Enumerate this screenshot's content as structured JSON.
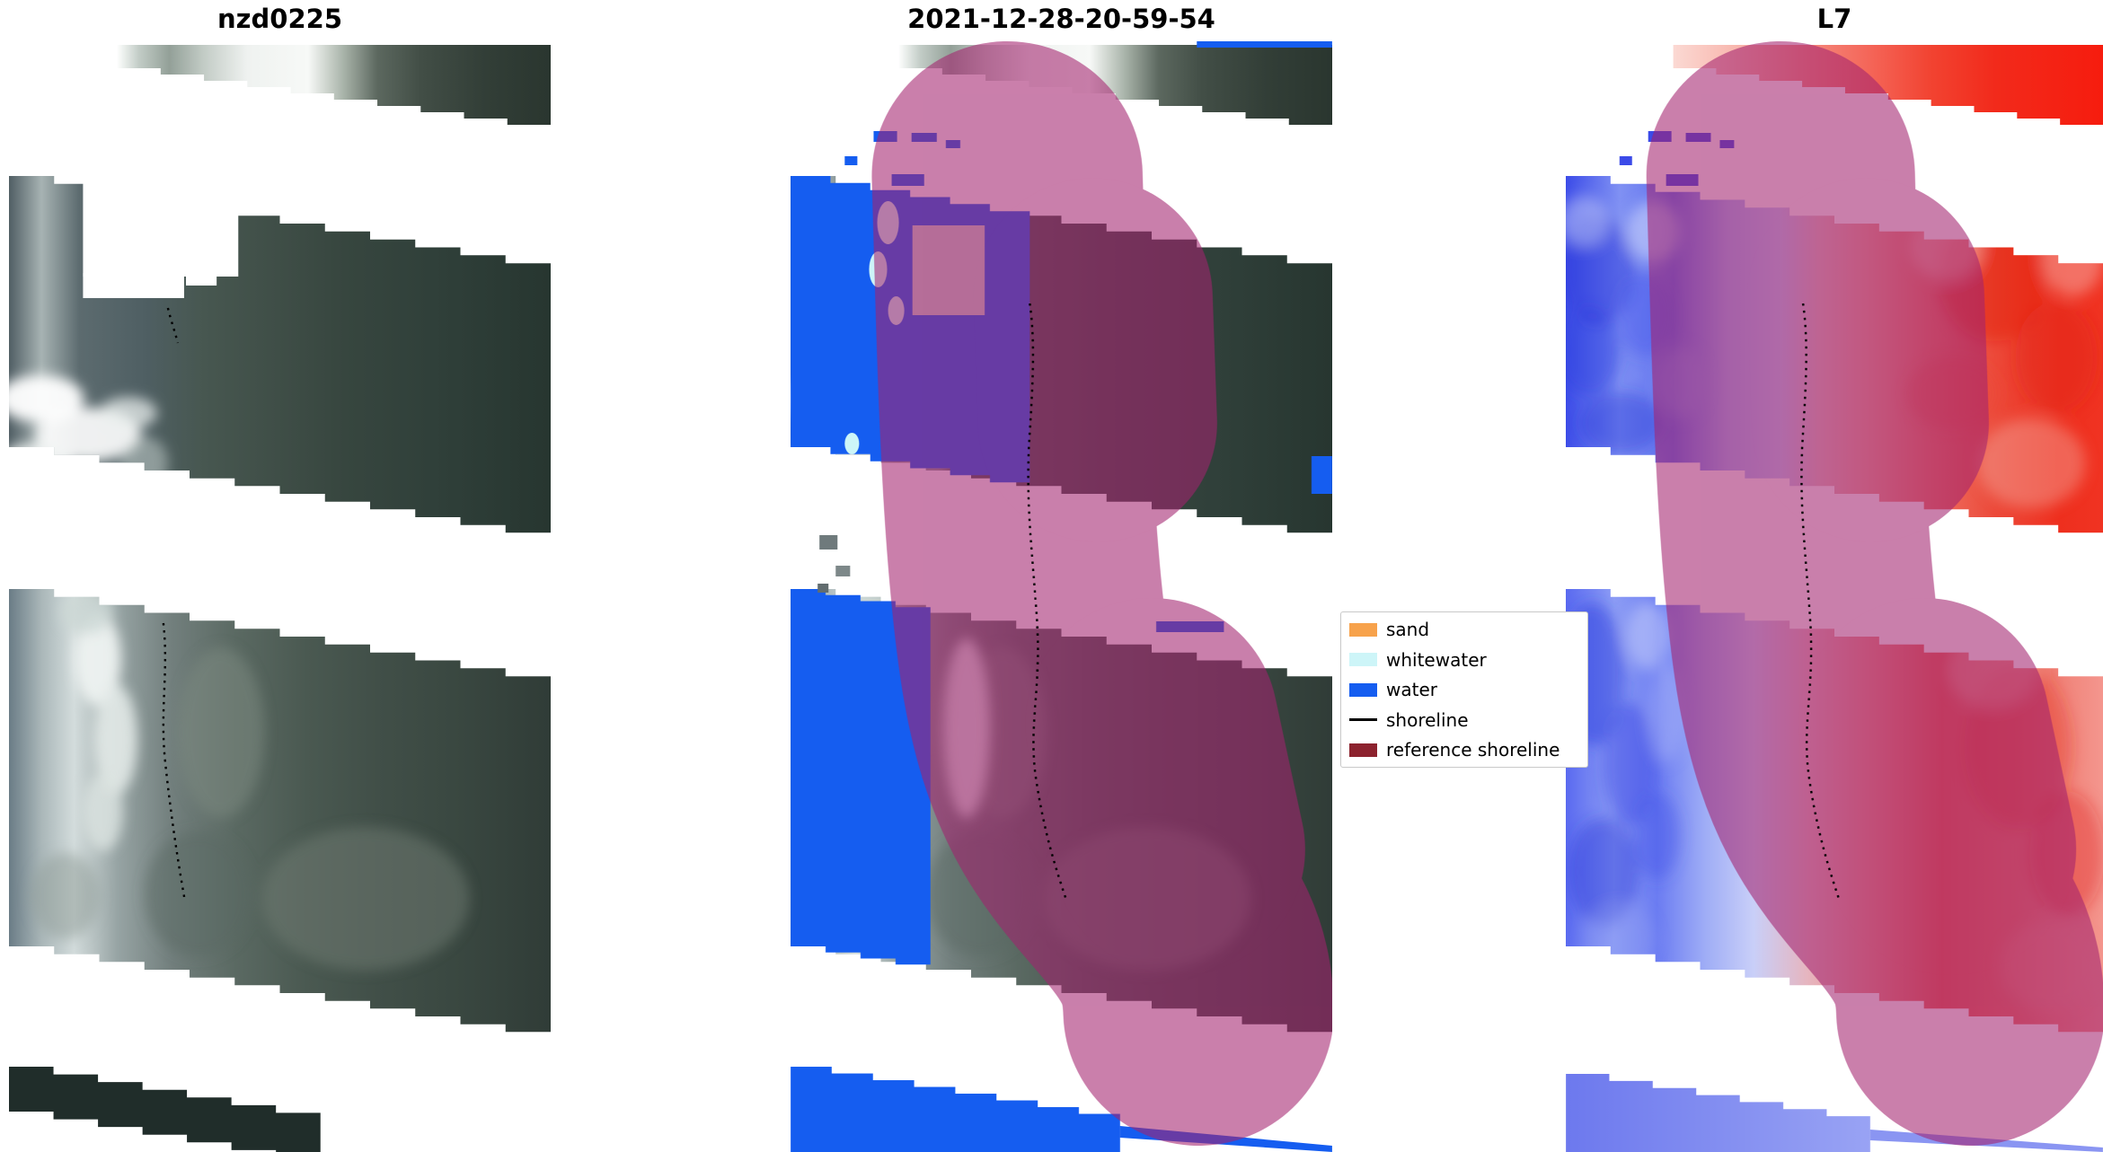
{
  "figure": {
    "background": "#ffffff",
    "panels": [
      {
        "id": "rgb",
        "title": "nzd0225"
      },
      {
        "id": "classified",
        "title": "2021-12-28-20-59-54"
      },
      {
        "id": "l7",
        "title": "L7"
      }
    ]
  },
  "legend": {
    "items": [
      {
        "label": "sand",
        "swatch": "patch",
        "color": "#f7a24b"
      },
      {
        "label": "whitewater",
        "swatch": "patch",
        "color": "#cdf5f8"
      },
      {
        "label": "water",
        "swatch": "patch",
        "color": "#155df0"
      },
      {
        "label": "shoreline",
        "swatch": "line",
        "color": "#000000"
      },
      {
        "label": "reference shoreline",
        "swatch": "patch",
        "color": "#8c222e"
      }
    ]
  },
  "overlay": {
    "reference_buffer_color": "#a3236e",
    "shoreline_style": "black dotted line"
  },
  "chart_data": {
    "type": "image",
    "panels": [
      {
        "title": "nzd0225",
        "description": "True-colour satellite image of a coastal scene with cloud cover and diagonal Landsat-7 SLC-off data gaps (white stepped stripes)"
      },
      {
        "title": "2021-12-28-20-59-54",
        "description": "Same scene with pixel classification: water in blue, whitewater in pale cyan, detected shoreline as black dotted line, translucent magenta reference-shoreline buffer"
      },
      {
        "title": "L7",
        "description": "Landsat-7 spectral-index rendering, blue = water and red = land, with the same translucent reference-shoreline buffer and detected shoreline"
      }
    ],
    "legend_entries": [
      "sand",
      "whitewater",
      "water",
      "shoreline",
      "reference shoreline"
    ],
    "axes": "none"
  }
}
